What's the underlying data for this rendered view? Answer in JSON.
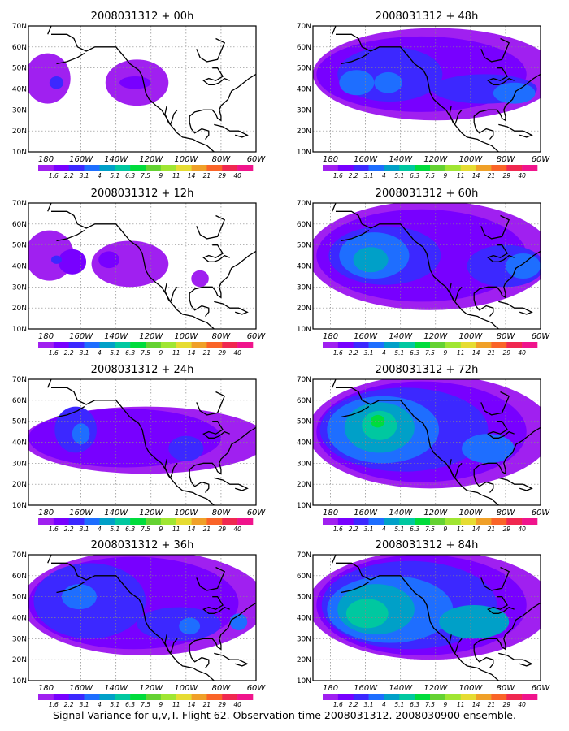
{
  "figure": {
    "caption": "Signal Variance for u,v,T. Flight 62. Observation time 2008031312. 2008030900 ensemble.",
    "x_tick_labels": [
      "180",
      "160W",
      "140W",
      "120W",
      "100W",
      "80W",
      "60W"
    ],
    "y_tick_labels": [
      "10N",
      "20N",
      "30N",
      "40N",
      "50N",
      "60N",
      "70N"
    ]
  },
  "colorbar": {
    "levels": [
      "1.6",
      "2.2",
      "3.1",
      "4",
      "5.1",
      "6.3",
      "7.5",
      "9",
      "11",
      "14",
      "21",
      "29",
      "40"
    ],
    "colors": [
      "#a020f0",
      "#7800ff",
      "#3c28ff",
      "#1e6eff",
      "#00a0c8",
      "#00c8a0",
      "#00dc3c",
      "#64d232",
      "#a0e632",
      "#e6dc32",
      "#f0a028",
      "#fa6428",
      "#f02850",
      "#f0148c"
    ]
  },
  "panels": [
    {
      "id": "p00",
      "title": "2008031312 + 00h",
      "lead_hours": 0
    },
    {
      "id": "p48",
      "title": "2008031312 + 48h",
      "lead_hours": 48
    },
    {
      "id": "p12",
      "title": "2008031312 + 12h",
      "lead_hours": 12
    },
    {
      "id": "p60",
      "title": "2008031312 + 60h",
      "lead_hours": 60
    },
    {
      "id": "p24",
      "title": "2008031312 + 24h",
      "lead_hours": 24
    },
    {
      "id": "p72",
      "title": "2008031312 + 72h",
      "lead_hours": 72
    },
    {
      "id": "p36",
      "title": "2008031312 + 36h",
      "lead_hours": 36
    },
    {
      "id": "p84",
      "title": "2008031312 + 84h",
      "lead_hours": 84
    }
  ]
}
